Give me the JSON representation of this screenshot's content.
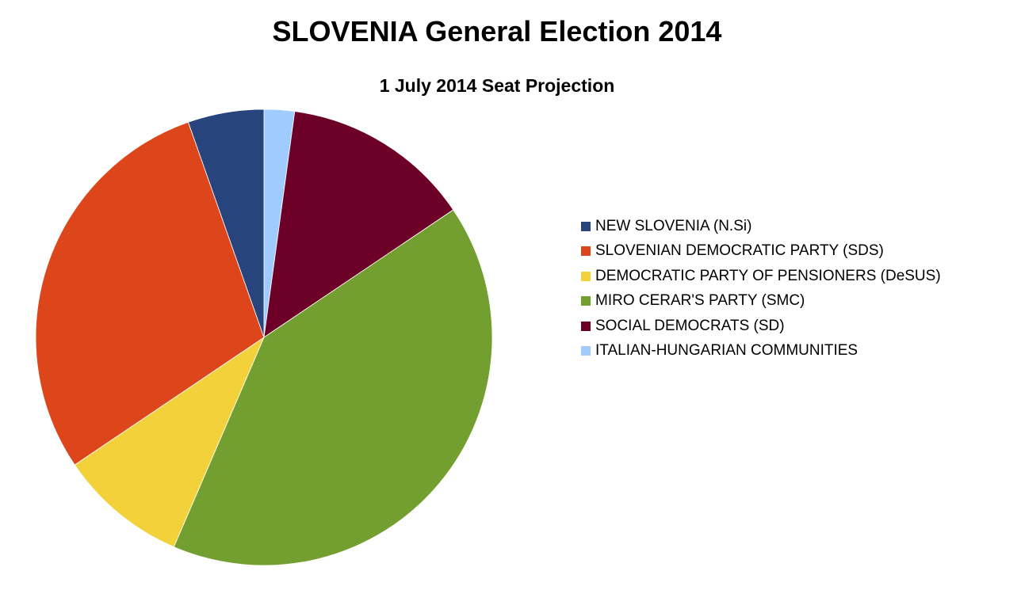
{
  "chart_data": {
    "type": "pie",
    "title": "SLOVENIA General Election 2014",
    "subtitle": "1 July 2014 Seat Projection",
    "legend_placement": "right",
    "slices": [
      {
        "name": "NEW SLOVENIA (N.Si)",
        "value": 5.5,
        "color": "#27457c"
      },
      {
        "name": "SLOVENIAN DEMOCRATIC PARTY (SDS)",
        "value": 29.7,
        "color": "#dd461a"
      },
      {
        "name": "DEMOCRATIC PARTY OF PENSIONERS (DeSUS)",
        "value": 9.3,
        "color": "#f3d13b"
      },
      {
        "name": "MIRO CERAR'S PARTY (SMC)",
        "value": 41.8,
        "color": "#739e30"
      },
      {
        "name": "SOCIAL DEMOCRATS (SD)",
        "value": 13.7,
        "color": "#6d0026"
      },
      {
        "name": "ITALIAN-HUNGARIAN COMMUNITIES",
        "value": 2.2,
        "color": "#9fcbff"
      }
    ],
    "draw_order": [
      5,
      4,
      3,
      2,
      1,
      0
    ]
  }
}
